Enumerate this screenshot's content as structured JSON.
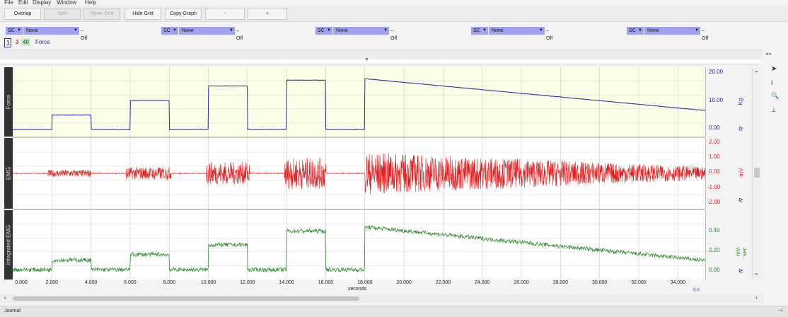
{
  "menu": [
    "File",
    "Edit",
    "Display",
    "Window",
    "Help"
  ],
  "toolbar": {
    "overlap": "Overlap",
    "split": "Split",
    "show_grid": "Show Grid",
    "hide_grid": "Hide Grid",
    "copy_graph": "Copy Graph",
    "minus": "-",
    "plus": "+"
  },
  "channel_selectors": [
    {
      "sc": "SC",
      "source": "None",
      "state": "Off"
    },
    {
      "sc": "SC",
      "source": "None",
      "state": "Off"
    },
    {
      "sc": "SC",
      "source": "None",
      "state": "Off"
    },
    {
      "sc": "SC",
      "source": "None",
      "state": "Off"
    },
    {
      "sc": "SC",
      "source": "None",
      "state": "Off"
    }
  ],
  "channel_tabs": {
    "t1": "1",
    "t3": "3",
    "t40": "40",
    "name": "Force"
  },
  "channels": [
    {
      "num": "1",
      "name": "Force",
      "unit": "Kg",
      "ticks": [
        "20.00",
        "10.00",
        "0.00"
      ],
      "color": "#2a2aa0"
    },
    {
      "num": "3",
      "name": "EMG",
      "unit": "mV",
      "ticks": [
        "2.00",
        "1.00",
        "0.00",
        "-1.00",
        "-2.00"
      ],
      "color": "#e02020"
    },
    {
      "num": "40",
      "name": "Integrated EMG",
      "unit": "mV-sec",
      "ticks": [
        "0.40",
        "0.20",
        "0.00"
      ],
      "color": "#2e8b2e"
    }
  ],
  "x_axis": {
    "label": "seconds",
    "ticks": [
      "0.000",
      "2.000",
      "4.000",
      "6.000",
      "8.000",
      "10.000",
      "12.000",
      "14.000",
      "16.000",
      "18.000",
      "20.000",
      "22.000",
      "24.000",
      "26.000",
      "28.000",
      "30.000",
      "32.000",
      "34.000"
    ]
  },
  "journal": "Journal",
  "colors": {
    "plot_bg": "#fbfde6",
    "accent": "#9fa2f0"
  }
}
